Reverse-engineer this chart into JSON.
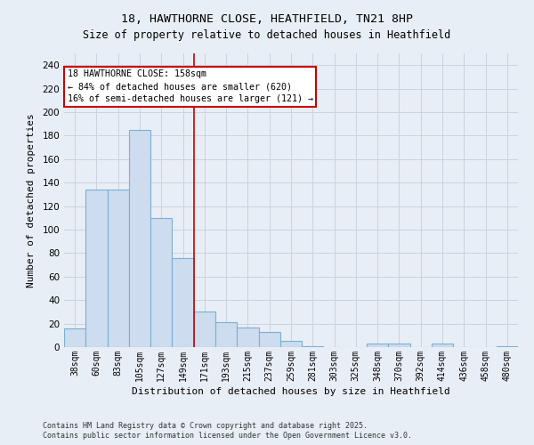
{
  "title": "18, HAWTHORNE CLOSE, HEATHFIELD, TN21 8HP",
  "subtitle": "Size of property relative to detached houses in Heathfield",
  "xlabel": "Distribution of detached houses by size in Heathfield",
  "ylabel": "Number of detached properties",
  "bin_labels": [
    "38sqm",
    "60sqm",
    "83sqm",
    "105sqm",
    "127sqm",
    "149sqm",
    "171sqm",
    "193sqm",
    "215sqm",
    "237sqm",
    "259sqm",
    "281sqm",
    "303sqm",
    "325sqm",
    "348sqm",
    "370sqm",
    "392sqm",
    "414sqm",
    "436sqm",
    "458sqm",
    "480sqm"
  ],
  "bar_heights": [
    16,
    134,
    134,
    185,
    110,
    76,
    30,
    21,
    17,
    13,
    5,
    1,
    0,
    0,
    3,
    3,
    0,
    3,
    0,
    0,
    1
  ],
  "bar_color": "#cddcee",
  "bar_edge_color": "#7bafd4",
  "vline_x": 6.0,
  "vline_color": "#cc0000",
  "annotation_line1": "18 HAWTHORNE CLOSE: 158sqm",
  "annotation_line2": "← 84% of detached houses are smaller (620)",
  "annotation_line3": "16% of semi-detached houses are larger (121) →",
  "annotation_box_color": "#ffffff",
  "annotation_box_edge": "#cc0000",
  "ylim": [
    0,
    250
  ],
  "yticks": [
    0,
    20,
    40,
    60,
    80,
    100,
    120,
    140,
    160,
    180,
    200,
    220,
    240
  ],
  "footer1": "Contains HM Land Registry data © Crown copyright and database right 2025.",
  "footer2": "Contains public sector information licensed under the Open Government Licence v3.0.",
  "bg_color": "#e8eef5",
  "plot_bg_color": "#e8eef5",
  "grid_color": "#c8d4e0",
  "title_fontsize": 9.5,
  "subtitle_fontsize": 8.5
}
